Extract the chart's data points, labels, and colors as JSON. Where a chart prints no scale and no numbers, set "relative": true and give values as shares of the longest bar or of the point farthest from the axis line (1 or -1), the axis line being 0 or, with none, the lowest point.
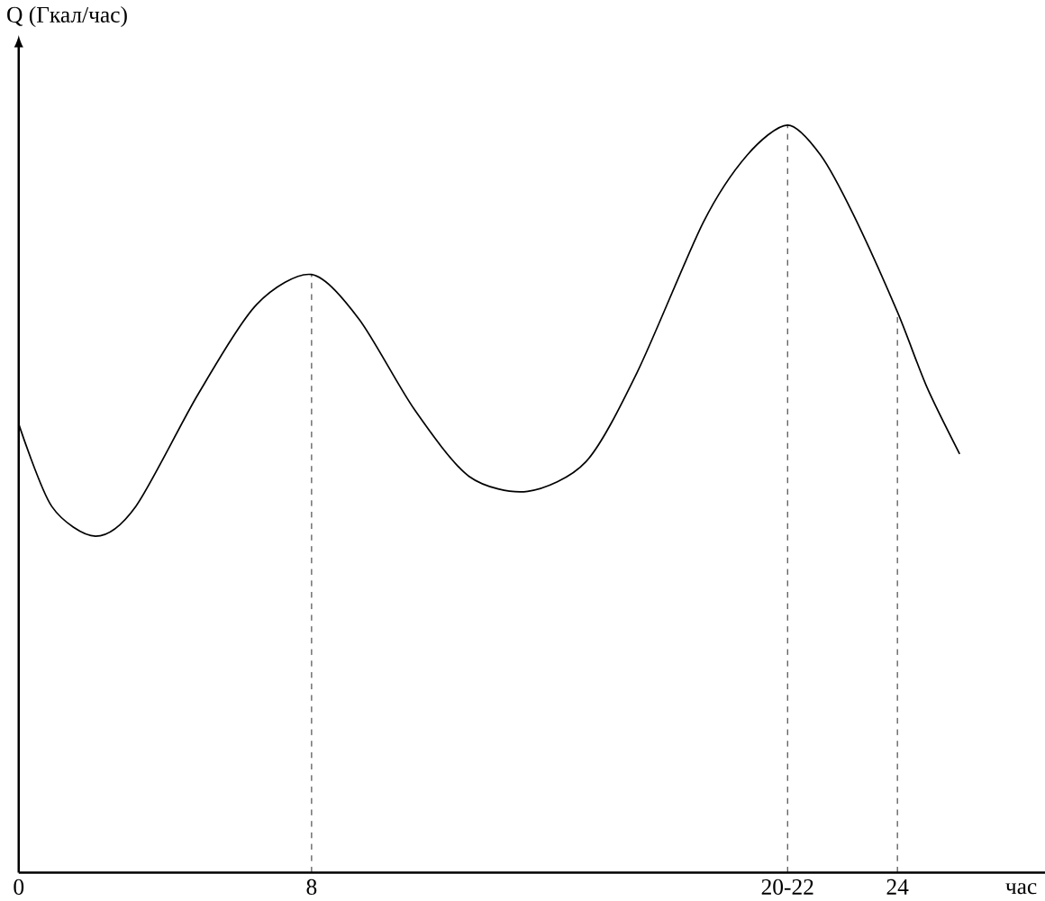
{
  "chart_data": {
    "type": "line",
    "relative": true,
    "xlabel": "час",
    "ylabel": "Q (Гкал/час)",
    "x": [
      0,
      0.9,
      2.1,
      3.2,
      4.9,
      6.5,
      8,
      9.3,
      10.8,
      12.3,
      13.9,
      15.5,
      16.9,
      18.7,
      19.9,
      21,
      21.9,
      22.8,
      24,
      24.8,
      25.7
    ],
    "values": [
      0.6,
      0.49,
      0.45,
      0.49,
      0.64,
      0.76,
      0.8,
      0.74,
      0.62,
      0.53,
      0.51,
      0.55,
      0.67,
      0.87,
      0.96,
      1.0,
      0.96,
      0.88,
      0.75,
      0.65,
      0.56
    ],
    "color": "#000000",
    "xlim": [
      0,
      28
    ],
    "xticks": [
      0,
      8,
      {
        "value": 21,
        "label": "20-22"
      },
      24
    ],
    "ref_lines": [
      {
        "axis": "x",
        "value": 8,
        "line_style": "dashed"
      },
      {
        "axis": "x",
        "value": 21,
        "line_style": "dashed"
      },
      {
        "axis": "x",
        "value": 24,
        "line_style": "dashed"
      }
    ],
    "grid": false,
    "marker": "none",
    "line_style": "solid"
  }
}
